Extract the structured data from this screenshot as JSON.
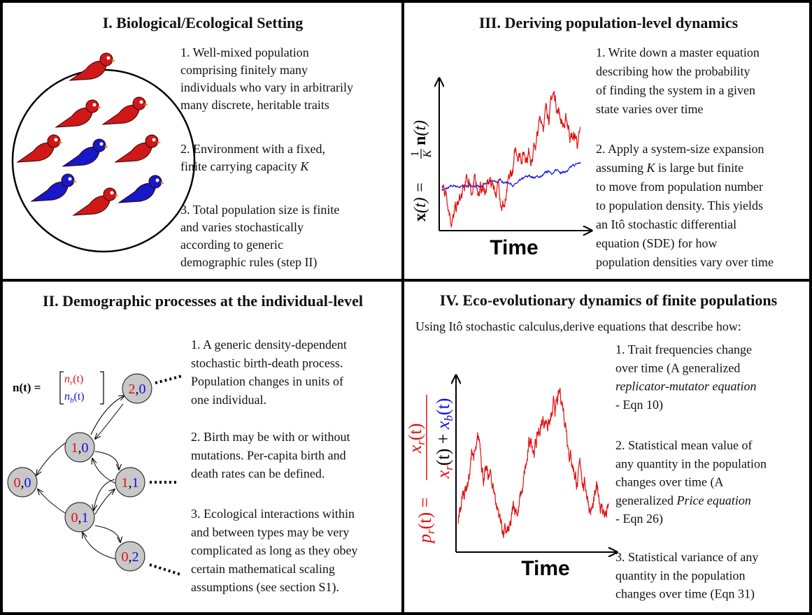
{
  "panel_1": {
    "title": "I. Biological/Ecological Setting",
    "items": [
      [
        "1. Well-mixed population",
        "comprising finitely many",
        " individuals who vary in arbitrarily",
        "many discrete, heritable traits"
      ],
      [
        "2. Environment with a fixed,",
        [
          "finite carrying capacity ",
          "K"
        ]
      ],
      [
        "3. Total population size is finite",
        "and varies stochastically",
        " according to generic",
        "demographic rules (step II)"
      ]
    ]
  },
  "panel_3": {
    "title": "III. Deriving population-level dynamics",
    "x_label": "Time",
    "y_label": {
      "lhs": [
        "x",
        "(t) ="
      ],
      "numerator": "1",
      "denominator": "K",
      "rhs": [
        "n",
        "(t)"
      ]
    },
    "items": [
      [
        "1. Write down a master equation",
        "describing how the probability",
        "of finding the system in a given",
        "state varies over time"
      ],
      [
        "2. Apply a system-size expansion",
        [
          "assuming ",
          "K",
          " is large but finite"
        ],
        "to move from population number",
        "to population density. This yields",
        "an Itô stochastic differential",
        "equation (SDE) for how",
        "population densities vary over time"
      ]
    ]
  },
  "panel_2": {
    "title": "II. Demographic processes at the individual-level",
    "state_label": {
      "lhs": "n(t) =",
      "top": [
        "n",
        "r",
        "(t)"
      ],
      "bottom": [
        "n",
        "b",
        "(t)"
      ]
    },
    "nodes": [
      [
        "2",
        ",",
        "0"
      ],
      [
        "1",
        ",",
        "0"
      ],
      [
        "1",
        ",",
        "1"
      ],
      [
        "0",
        ",",
        "0"
      ],
      [
        "0",
        ",",
        "1"
      ],
      [
        "0",
        ",",
        "2"
      ]
    ],
    "items": [
      [
        "1. A generic density-dependent",
        "stochastic birth-death process.",
        "Population changes in units of",
        "one individual."
      ],
      [
        "2. Birth may be with or without",
        "mutations. Per-capita birth and",
        "death rates can be defined."
      ],
      [
        "3. Ecological interactions within",
        "and between types may be very",
        "complicated as long as they obey",
        "certain mathematical scaling",
        "assumptions (see section S1)."
      ]
    ]
  },
  "panel_4": {
    "title": "IV. Eco-evolutionary dynamics of finite populations",
    "subtitle": "Using Itô stochastic calculus,derive equations that describe how:",
    "x_label": "Time",
    "y_label": {
      "lhs": [
        "p",
        "r",
        "(t) ="
      ],
      "numerator": [
        "x",
        "r",
        "(t)"
      ],
      "denominator": [
        "x",
        "r",
        "(t) + ",
        "x",
        "b",
        "(t)"
      ]
    },
    "items": [
      [
        "1. Trait frequencies change",
        "over time (A generalized",
        [
          "",
          "replicator-mutator equation"
        ],
        "- Eqn 10)"
      ],
      [
        "2. Statistical mean value of",
        "any quantity in the population",
        "changes over time (A",
        [
          "generalized ",
          "Price equation"
        ],
        "- Eqn 26)"
      ],
      [
        "3. Statistical variance of any",
        "quantity in the population",
        "changes over time (Eqn 31)"
      ]
    ]
  }
}
